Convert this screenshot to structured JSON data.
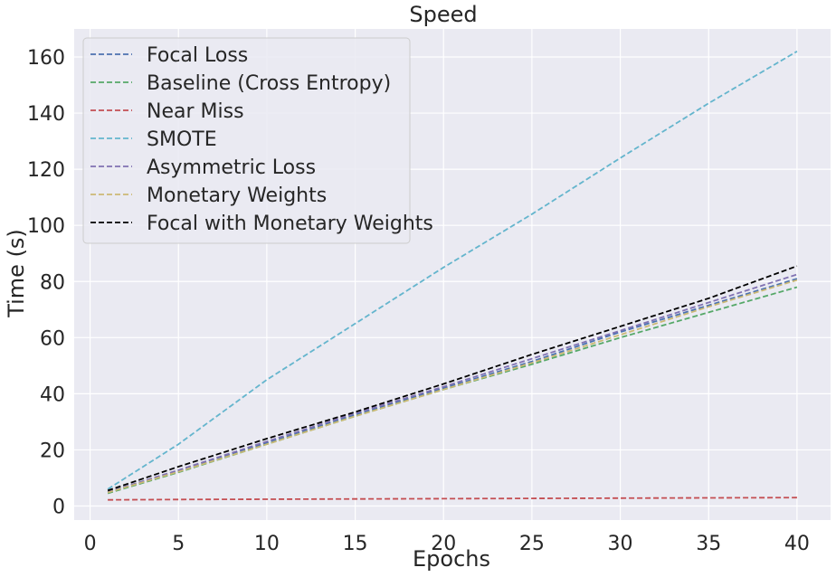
{
  "chart_data": {
    "type": "line",
    "title": "Speed",
    "xlabel": "Epochs",
    "ylabel": "Time (s)",
    "xlim": [
      -0.9,
      41.9
    ],
    "ylim": [
      -5,
      170
    ],
    "xticks": [
      0,
      5,
      10,
      15,
      20,
      25,
      30,
      35,
      40
    ],
    "yticks": [
      0,
      20,
      40,
      60,
      80,
      100,
      120,
      140,
      160
    ],
    "grid": true,
    "legend_position": "top-left",
    "line_style": "dashed",
    "background_color": "#eaeaf2",
    "grid_color": "#ffffff",
    "series": [
      {
        "name": "Focal Loss",
        "color": "#4c72b0",
        "x": [
          1,
          5,
          10,
          15,
          20,
          25,
          30,
          35,
          40
        ],
        "y": [
          5,
          12.5,
          22.5,
          32.5,
          42,
          51.5,
          62,
          71.5,
          81
        ]
      },
      {
        "name": "Baseline (Cross Entropy)",
        "color": "#55a868",
        "x": [
          1,
          5,
          10,
          15,
          20,
          25,
          30,
          35,
          40
        ],
        "y": [
          4.5,
          12,
          22,
          32,
          41.5,
          50.5,
          60,
          69,
          78
        ]
      },
      {
        "name": "Near Miss",
        "color": "#c44e52",
        "x": [
          1,
          5,
          10,
          15,
          20,
          25,
          30,
          35,
          40
        ],
        "y": [
          2.2,
          2.3,
          2.4,
          2.5,
          2.6,
          2.7,
          2.8,
          2.9,
          3
        ]
      },
      {
        "name": "SMOTE",
        "color": "#64b5cd",
        "x": [
          1,
          5,
          10,
          15,
          20,
          25,
          30,
          35,
          40
        ],
        "y": [
          6,
          22,
          45,
          65,
          85,
          104,
          124,
          143.5,
          162
        ]
      },
      {
        "name": "Asymmetric Loss",
        "color": "#8172b2",
        "x": [
          1,
          5,
          10,
          15,
          20,
          25,
          30,
          35,
          40
        ],
        "y": [
          5,
          12.8,
          23,
          33,
          42.5,
          52.5,
          62.5,
          72.5,
          82.5
        ]
      },
      {
        "name": "Monetary Weights",
        "color": "#ccb974",
        "x": [
          1,
          5,
          10,
          15,
          20,
          25,
          30,
          35,
          40
        ],
        "y": [
          4.8,
          12.2,
          22,
          32,
          41.5,
          51,
          61,
          71,
          80.5
        ]
      },
      {
        "name": "Focal with Monetary Weights",
        "color": "#000000",
        "x": [
          1,
          5,
          10,
          15,
          20,
          25,
          30,
          35,
          40
        ],
        "y": [
          5.5,
          14,
          24,
          33.5,
          43.5,
          54,
          64,
          74,
          85.5
        ]
      }
    ]
  }
}
